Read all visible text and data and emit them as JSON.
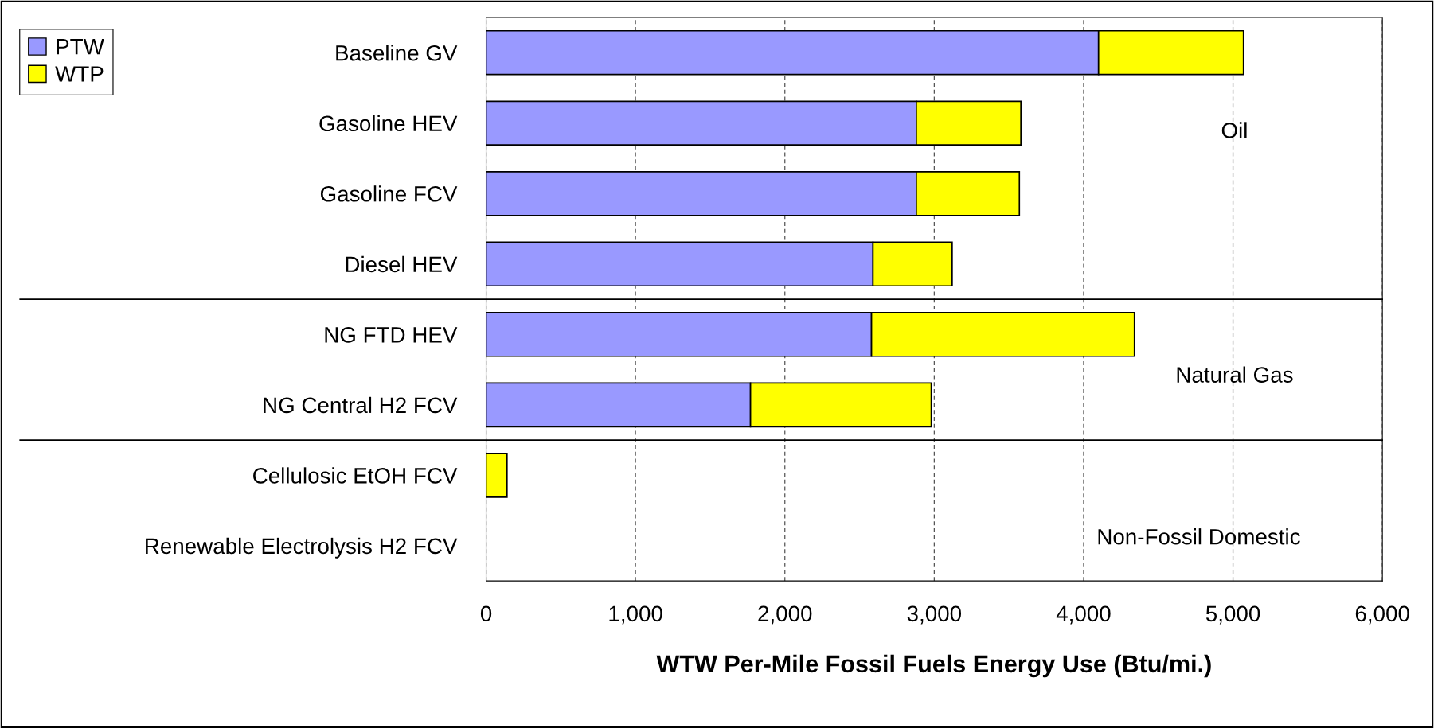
{
  "chart_data": {
    "type": "bar",
    "orientation": "horizontal",
    "stacked": true,
    "categories": [
      "Baseline GV",
      "Gasoline HEV",
      "Gasoline FCV",
      "Diesel HEV",
      "NG FTD HEV",
      "NG Central H2 FCV",
      "Cellulosic EtOH FCV",
      "Renewable Electrolysis H2 FCV"
    ],
    "series": [
      {
        "name": "PTW",
        "color": "#9999ff",
        "values": [
          4100,
          2880,
          2880,
          2590,
          2580,
          1770,
          0,
          0
        ]
      },
      {
        "name": "WTP",
        "color": "#ffff00",
        "values": [
          970,
          700,
          690,
          530,
          1760,
          1210,
          140,
          0
        ]
      }
    ],
    "xlabel": "WTW Per-Mile Fossil Fuels Energy Use (Btu/mi.)",
    "xlim": [
      0,
      6000
    ],
    "xticks": [
      {
        "value": 0,
        "label": "0"
      },
      {
        "value": 1000,
        "label": "1,000"
      },
      {
        "value": 2000,
        "label": "2,000"
      },
      {
        "value": 3000,
        "label": "3,000"
      },
      {
        "value": 4000,
        "label": "4,000"
      },
      {
        "value": 5000,
        "label": "5,000"
      },
      {
        "value": 6000,
        "label": "6,000"
      }
    ],
    "grid": "x",
    "legend": "top left",
    "annotations": [
      "Oil",
      "Natural Gas",
      "Non-Fossil Domestic"
    ]
  }
}
